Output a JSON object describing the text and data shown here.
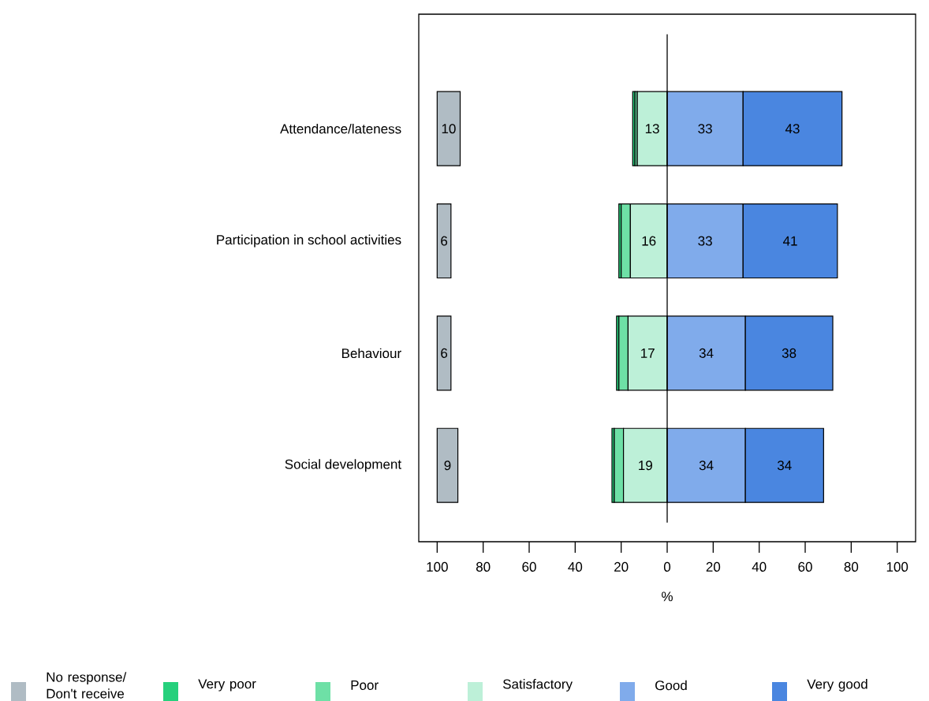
{
  "chart_data": {
    "type": "bar",
    "orientation": "horizontal",
    "xlabel": "%",
    "categories": [
      "Attendance/lateness",
      "Participation in school activities",
      "Behaviour",
      "Social development"
    ],
    "series": [
      {
        "name": "No response/ Don't receive",
        "color": "#b0bcc4",
        "base": [
          -100,
          -100,
          -100,
          -100
        ],
        "values": [
          10,
          6,
          6,
          9
        ],
        "value_labels": [
          "10",
          "6",
          "6",
          "9"
        ]
      },
      {
        "name": "Very poor",
        "color": "#26d07c",
        "base": [
          -15,
          -21,
          -22,
          -24
        ],
        "values": [
          1,
          1,
          1,
          1
        ]
      },
      {
        "name": "Poor",
        "color": "#6ee0a6",
        "base": [
          -14,
          -20,
          -21,
          -23
        ],
        "values": [
          1,
          4,
          4,
          4
        ]
      },
      {
        "name": "Satisfactory",
        "color": "#bdf0d8",
        "base": [
          -13,
          -16,
          -17,
          -19
        ],
        "values": [
          13,
          16,
          17,
          19
        ],
        "value_labels": [
          "13",
          "16",
          "17",
          "19"
        ]
      },
      {
        "name": "Good",
        "color": "#80abeb",
        "base": [
          0,
          0,
          0,
          0
        ],
        "values": [
          33,
          33,
          34,
          34
        ],
        "value_labels": [
          "33",
          "33",
          "34",
          "34"
        ]
      },
      {
        "name": "Very good",
        "color": "#4a86e0",
        "base": [
          33,
          33,
          34,
          34
        ],
        "values": [
          43,
          41,
          38,
          34
        ],
        "value_labels": [
          "43",
          "41",
          "38",
          "34"
        ]
      }
    ],
    "xlim": [
      -108,
      108
    ],
    "xticks": [
      {
        "value": -100,
        "label": "100"
      },
      {
        "value": -80,
        "label": "80"
      },
      {
        "value": -60,
        "label": "60"
      },
      {
        "value": -40,
        "label": "40"
      },
      {
        "value": -20,
        "label": "20"
      },
      0,
      20,
      40,
      60,
      80,
      100
    ],
    "ref_lines": [
      {
        "axis": "x",
        "value": 0
      }
    ],
    "legend": "bottom"
  }
}
